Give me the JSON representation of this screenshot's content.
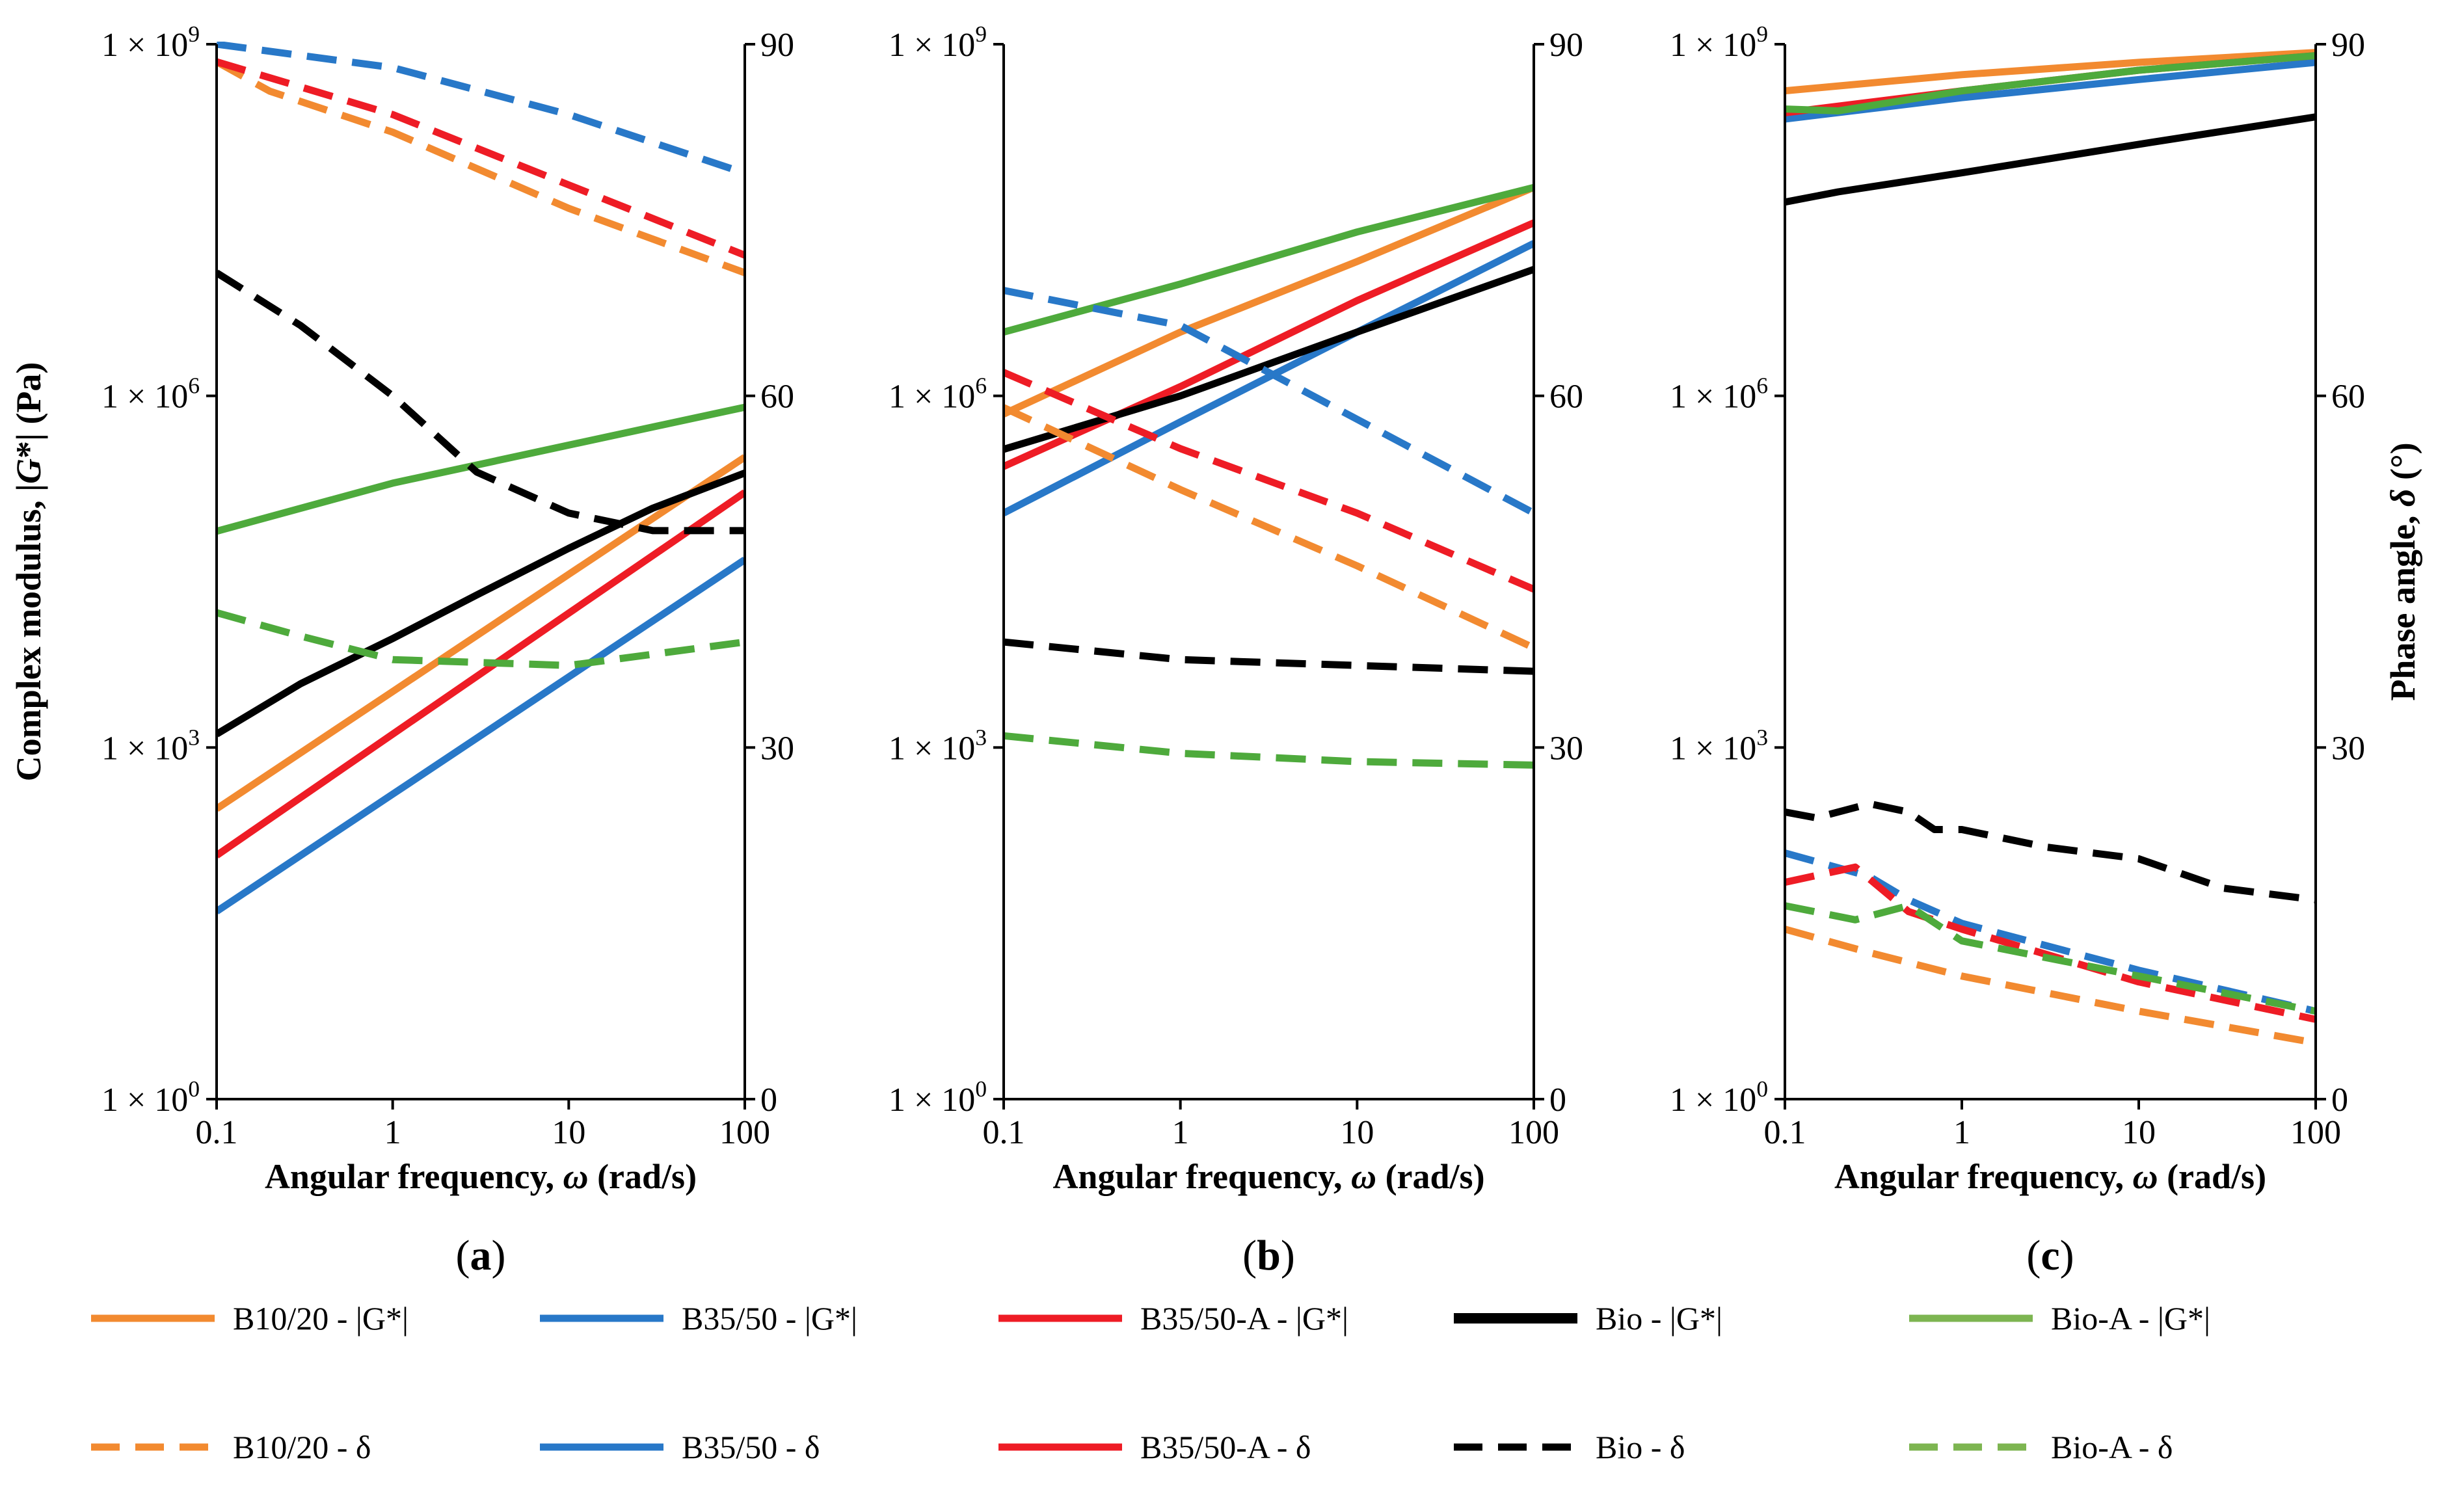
{
  "chart_data": [
    {
      "type": "line",
      "panel_label": "(a)",
      "xlabel": "Angular frequency, ω (rad/s)",
      "ylabel": "Complex modulus, |G*| (Pa)",
      "y2label": "",
      "xscale": "log",
      "xlim": [
        0.1,
        100
      ],
      "xticks": [
        0.1,
        1,
        10,
        100
      ],
      "xtick_labels": [
        "0.1",
        "1",
        "10",
        "100"
      ],
      "yscale": "log",
      "ylim": [
        1,
        1000000000
      ],
      "yticks": [
        1,
        1000,
        1000000,
        1000000000
      ],
      "ytick_labels": [
        "1 × 10^0",
        "1 × 10^3",
        "1 × 10^6",
        "1 × 10^9"
      ],
      "y2lim": [
        0,
        90
      ],
      "y2ticks": [
        0,
        30,
        60,
        90
      ],
      "y2tick_labels": [
        "0",
        "30",
        "60",
        "90"
      ],
      "series": [
        {
          "name": "B10/20 - |G*|",
          "axis": "left",
          "color": "#F28A30",
          "style": "solid",
          "points": [
            [
              0.1,
              300
            ],
            [
              1,
              3000
            ],
            [
              10,
              30000
            ],
            [
              100,
              300000
            ]
          ]
        },
        {
          "name": "B35/50 - |G*|",
          "axis": "left",
          "color": "#2878C8",
          "style": "solid",
          "points": [
            [
              0.1,
              40
            ],
            [
              1,
              400
            ],
            [
              10,
              4000
            ],
            [
              100,
              40000
            ]
          ]
        },
        {
          "name": "B35/50-A - |G*|",
          "axis": "left",
          "color": "#EE1C25",
          "style": "solid",
          "points": [
            [
              0.1,
              120
            ],
            [
              1,
              1300
            ],
            [
              10,
              14000
            ],
            [
              100,
              150000
            ]
          ]
        },
        {
          "name": "Bio - |G*|",
          "axis": "left",
          "color": "#000000",
          "style": "solid",
          "points": [
            [
              0.1,
              1300
            ],
            [
              0.3,
              3500
            ],
            [
              1,
              8500
            ],
            [
              3,
              20000
            ],
            [
              10,
              50000
            ],
            [
              30,
              110000
            ],
            [
              100,
              220000
            ]
          ]
        },
        {
          "name": "Bio-A - |G*|",
          "axis": "left",
          "color": "#4EAA3C",
          "style": "solid",
          "points": [
            [
              0.1,
              70000
            ],
            [
              1,
              180000
            ],
            [
              10,
              380000
            ],
            [
              100,
              800000
            ]
          ]
        },
        {
          "name": "B10/20 - δ",
          "axis": "right",
          "color": "#F28A30",
          "style": "dash",
          "points": [
            [
              0.1,
              88.5
            ],
            [
              0.2,
              86
            ],
            [
              1,
              82.5
            ],
            [
              10,
              76
            ],
            [
              100,
              70.5
            ]
          ]
        },
        {
          "name": "B35/50 - δ",
          "axis": "right",
          "color": "#2878C8",
          "style": "dash",
          "points": [
            [
              0.1,
              90
            ],
            [
              1,
              88
            ],
            [
              10,
              84
            ],
            [
              100,
              79
            ]
          ]
        },
        {
          "name": "B35/50-A - δ",
          "axis": "right",
          "color": "#EE1C25",
          "style": "dash",
          "points": [
            [
              0.1,
              88.5
            ],
            [
              1,
              84
            ],
            [
              10,
              78
            ],
            [
              100,
              72
            ]
          ]
        },
        {
          "name": "Bio - δ",
          "axis": "right",
          "color": "#000000",
          "style": "dash",
          "points": [
            [
              0.1,
              70.5
            ],
            [
              0.3,
              66
            ],
            [
              1,
              60
            ],
            [
              3,
              53.5
            ],
            [
              10,
              50
            ],
            [
              30,
              48.5
            ],
            [
              100,
              48.5
            ]
          ]
        },
        {
          "name": "Bio-A - δ",
          "axis": "right",
          "color": "#4EAA3C",
          "style": "dash",
          "points": [
            [
              0.1,
              41.5
            ],
            [
              0.3,
              39.5
            ],
            [
              1,
              37.5
            ],
            [
              10,
              37
            ],
            [
              100,
              39
            ]
          ]
        }
      ]
    },
    {
      "type": "line",
      "panel_label": "(b)",
      "xlabel": "Angular frequency, ω (rad/s)",
      "ylabel": "",
      "y2label": "",
      "xscale": "log",
      "xlim": [
        0.1,
        100
      ],
      "xticks": [
        0.1,
        1,
        10,
        100
      ],
      "xtick_labels": [
        "0.1",
        "1",
        "10",
        "100"
      ],
      "yscale": "log",
      "ylim": [
        1,
        1000000000
      ],
      "yticks": [
        1,
        1000,
        1000000,
        1000000000
      ],
      "ytick_labels": [
        "1 × 10^0",
        "1 × 10^3",
        "1 × 10^6",
        "1 × 10^9"
      ],
      "y2lim": [
        0,
        90
      ],
      "y2ticks": [
        0,
        30,
        60,
        90
      ],
      "y2tick_labels": [
        "0",
        "30",
        "60",
        "90"
      ],
      "series": [
        {
          "name": "B10/20 - |G*|",
          "axis": "left",
          "color": "#F28A30",
          "style": "solid",
          "points": [
            [
              0.1,
              700000
            ],
            [
              1,
              3500000
            ],
            [
              10,
              14000000
            ],
            [
              100,
              60000000
            ]
          ]
        },
        {
          "name": "B35/50 - |G*|",
          "axis": "left",
          "color": "#2878C8",
          "style": "solid",
          "points": [
            [
              0.1,
              100000
            ],
            [
              1,
              600000
            ],
            [
              10,
              3500000
            ],
            [
              100,
              20000000
            ]
          ]
        },
        {
          "name": "B35/50-A - |G*|",
          "axis": "left",
          "color": "#EE1C25",
          "style": "solid",
          "points": [
            [
              0.1,
              250000
            ],
            [
              1,
              1200000
            ],
            [
              10,
              6500000
            ],
            [
              100,
              30000000
            ]
          ]
        },
        {
          "name": "Bio - |G*|",
          "axis": "left",
          "color": "#000000",
          "style": "solid",
          "points": [
            [
              0.1,
              350000
            ],
            [
              1,
              1000000
            ],
            [
              10,
              3500000
            ],
            [
              100,
              12000000
            ]
          ]
        },
        {
          "name": "Bio-A - |G*|",
          "axis": "left",
          "color": "#4EAA3C",
          "style": "solid",
          "points": [
            [
              0.1,
              3500000
            ],
            [
              1,
              9000000
            ],
            [
              10,
              25000000
            ],
            [
              100,
              60000000
            ]
          ]
        },
        {
          "name": "B10/20 - δ",
          "axis": "right",
          "color": "#F28A30",
          "style": "dash",
          "points": [
            [
              0.1,
              59
            ],
            [
              1,
              52
            ],
            [
              10,
              45.5
            ],
            [
              100,
              38.5
            ]
          ]
        },
        {
          "name": "B35/50 - δ",
          "axis": "right",
          "color": "#2878C8",
          "style": "dash",
          "points": [
            [
              0.1,
              69
            ],
            [
              1,
              66
            ],
            [
              10,
              58
            ],
            [
              100,
              50
            ]
          ]
        },
        {
          "name": "B35/50-A - δ",
          "axis": "right",
          "color": "#EE1C25",
          "style": "dash",
          "points": [
            [
              0.1,
              62
            ],
            [
              1,
              55.5
            ],
            [
              10,
              50
            ],
            [
              100,
              43.5
            ]
          ]
        },
        {
          "name": "Bio - δ",
          "axis": "right",
          "color": "#000000",
          "style": "dash",
          "points": [
            [
              0.1,
              39
            ],
            [
              1,
              37.5
            ],
            [
              10,
              37
            ],
            [
              100,
              36.5
            ]
          ]
        },
        {
          "name": "Bio-A - δ",
          "axis": "right",
          "color": "#4EAA3C",
          "style": "dash",
          "points": [
            [
              0.1,
              31
            ],
            [
              1,
              29.5
            ],
            [
              10,
              28.8
            ],
            [
              100,
              28.5
            ]
          ]
        }
      ]
    },
    {
      "type": "line",
      "panel_label": "(c)",
      "xlabel": "Angular frequency, ω (rad/s)",
      "ylabel": "",
      "y2label": "Phase angle, δ (°)",
      "xscale": "log",
      "xlim": [
        0.1,
        100
      ],
      "xticks": [
        0.1,
        1,
        10,
        100
      ],
      "xtick_labels": [
        "0.1",
        "1",
        "10",
        "100"
      ],
      "yscale": "log",
      "ylim": [
        1,
        1000000000
      ],
      "yticks": [
        1,
        1000,
        1000000,
        1000000000
      ],
      "ytick_labels": [
        "1 × 10^0",
        "1 × 10^3",
        "1 × 10^6",
        "1 × 10^9"
      ],
      "y2lim": [
        0,
        90
      ],
      "y2ticks": [
        0,
        30,
        60,
        90
      ],
      "y2tick_labels": [
        "0",
        "30",
        "60",
        "90"
      ],
      "series": [
        {
          "name": "B10/20 - |G*|",
          "axis": "left",
          "color": "#F28A30",
          "style": "solid",
          "points": [
            [
              0.1,
              400000000
            ],
            [
              1,
              550000000
            ],
            [
              10,
              700000000
            ],
            [
              100,
              850000000
            ]
          ]
        },
        {
          "name": "B35/50 - |G*|",
          "axis": "left",
          "color": "#2878C8",
          "style": "solid",
          "points": [
            [
              0.1,
              230000000
            ],
            [
              1,
              350000000
            ],
            [
              10,
              500000000
            ],
            [
              100,
              700000000
            ]
          ]
        },
        {
          "name": "B35/50-A - |G*|",
          "axis": "left",
          "color": "#EE1C25",
          "style": "solid",
          "points": [
            [
              0.1,
              260000000
            ],
            [
              1,
              400000000
            ],
            [
              10,
              600000000
            ],
            [
              100,
              800000000
            ]
          ]
        },
        {
          "name": "Bio - |G*|",
          "axis": "left",
          "color": "#000000",
          "style": "solid",
          "points": [
            [
              0.1,
              45000000
            ],
            [
              0.2,
              55000000
            ],
            [
              1,
              80000000
            ],
            [
              10,
              140000000
            ],
            [
              100,
              240000000
            ]
          ]
        },
        {
          "name": "Bio-A - |G*|",
          "axis": "left",
          "color": "#4EAA3C",
          "style": "solid",
          "points": [
            [
              0.1,
              280000000
            ],
            [
              0.2,
              270000000
            ],
            [
              1,
              400000000
            ],
            [
              10,
              600000000
            ],
            [
              100,
              800000000
            ]
          ]
        },
        {
          "name": "B10/20 - δ",
          "axis": "right",
          "color": "#F28A30",
          "style": "dash",
          "points": [
            [
              0.1,
              14.5
            ],
            [
              0.3,
              12.5
            ],
            [
              1,
              10.5
            ],
            [
              10,
              7.5
            ],
            [
              100,
              4.8
            ]
          ]
        },
        {
          "name": "B35/50 - δ",
          "axis": "right",
          "color": "#2878C8",
          "style": "dash",
          "points": [
            [
              0.1,
              21
            ],
            [
              0.3,
              19
            ],
            [
              0.5,
              17
            ],
            [
              1,
              15
            ],
            [
              10,
              11
            ],
            [
              100,
              7.5
            ]
          ]
        },
        {
          "name": "B35/50-A - δ",
          "axis": "right",
          "color": "#EE1C25",
          "style": "dash",
          "points": [
            [
              0.1,
              18.5
            ],
            [
              0.25,
              19.8
            ],
            [
              0.5,
              16
            ],
            [
              1,
              14.5
            ],
            [
              10,
              10
            ],
            [
              100,
              6.8
            ]
          ]
        },
        {
          "name": "Bio - δ",
          "axis": "right",
          "color": "#000000",
          "style": "dash",
          "points": [
            [
              0.1,
              24.5
            ],
            [
              0.15,
              24
            ],
            [
              0.3,
              25.2
            ],
            [
              0.5,
              24.5
            ],
            [
              0.7,
              23
            ],
            [
              1,
              23
            ],
            [
              3,
              21.5
            ],
            [
              10,
              20.5
            ],
            [
              30,
              18
            ],
            [
              100,
              17
            ]
          ]
        },
        {
          "name": "Bio-A - δ",
          "axis": "right",
          "color": "#4EAA3C",
          "style": "dash",
          "points": [
            [
              0.1,
              16.5
            ],
            [
              0.25,
              15.3
            ],
            [
              0.5,
              16.5
            ],
            [
              1,
              13.5
            ],
            [
              10,
              10.5
            ],
            [
              100,
              7.5
            ]
          ]
        }
      ]
    }
  ],
  "legend": {
    "items": [
      {
        "label": "B10/20 -  |G*|",
        "color": "#F28A30",
        "style": "solid"
      },
      {
        "label": "B35/50 -  |G*|",
        "color": "#2878C8",
        "style": "solid"
      },
      {
        "label": "B35/50-A -  |G*|",
        "color": "#EE1C25",
        "style": "solid"
      },
      {
        "label": "Bio -  |G*|",
        "color": "#000000",
        "style": "solid-thick"
      },
      {
        "label": "Bio-A -  |G*|",
        "color": "#7DB551",
        "style": "solid"
      },
      {
        "label": "B10/20 -  δ",
        "color": "#F28A30",
        "style": "dash"
      },
      {
        "label": "B35/50 -  δ",
        "color": "#2878C8",
        "style": "solid"
      },
      {
        "label": "B35/50-A -  δ",
        "color": "#EE1C25",
        "style": "solid"
      },
      {
        "label": "Bio -  δ",
        "color": "#000000",
        "style": "dash"
      },
      {
        "label": "Bio-A -  δ",
        "color": "#7DB551",
        "style": "dash"
      }
    ]
  }
}
